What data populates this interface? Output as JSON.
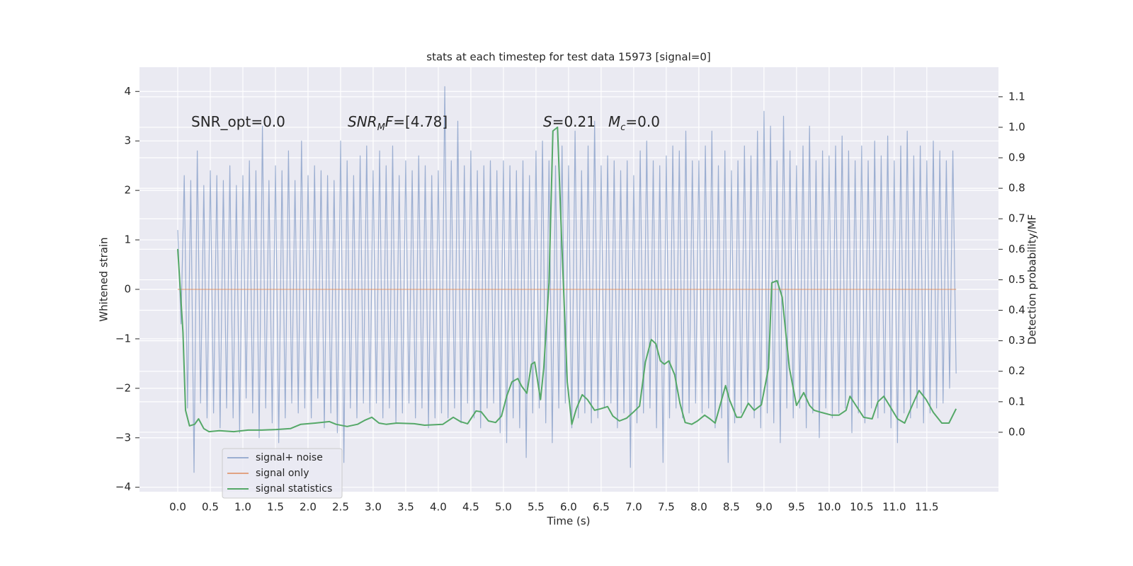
{
  "chart_data": {
    "type": "line",
    "title": "stats at each timestep for test data 15973 [signal=0]",
    "xlabel": "Time (s)",
    "ylabel": "Whitened strain",
    "y2label": "Detection probability/MF",
    "xlim": [
      -0.587,
      12.6
    ],
    "ylim": [
      -4.09,
      4.49
    ],
    "y2lim": [
      -0.195,
      1.197
    ],
    "xticks": [
      {
        "value": 0,
        "label": "0.0"
      },
      0.5,
      {
        "value": 1,
        "label": "1.0"
      },
      1.5,
      {
        "value": 2,
        "label": "2.0"
      },
      2.5,
      {
        "value": 3,
        "label": "3.0"
      },
      3.5,
      {
        "value": 4,
        "label": "4.0"
      },
      4.5,
      {
        "value": 5,
        "label": "5.0"
      },
      5.5,
      {
        "value": 6,
        "label": "6.0"
      },
      6.5,
      {
        "value": 7,
        "label": "7.0"
      },
      7.5,
      {
        "value": 8,
        "label": "8.0"
      },
      8.5,
      {
        "value": 9,
        "label": "9.0"
      },
      9.5,
      {
        "value": 10,
        "label": "10.0"
      },
      10.5,
      {
        "value": 11,
        "label": "11.0"
      },
      11.5
    ],
    "yticks": [
      {
        "value": -4,
        "label": "−4"
      },
      {
        "value": -3,
        "label": "−3"
      },
      {
        "value": -2,
        "label": "−2"
      },
      {
        "value": -1,
        "label": "−1"
      },
      0,
      1,
      2,
      3,
      4
    ],
    "y2ticks": [
      {
        "value": 0,
        "label": "0.0"
      },
      0.1,
      0.2,
      0.3,
      0.4,
      0.5,
      0.6,
      0.7,
      0.8,
      0.9,
      {
        "value": 1,
        "label": "1.0"
      },
      1.1
    ],
    "grid": true,
    "background": "#eaeaf2",
    "legend": "lower left",
    "annotations": [
      [
        {
          "text": "SNR_opt=0.0"
        }
      ],
      [
        {
          "text": "SNR",
          "italic": true
        },
        {
          "text": "M",
          "italic": true,
          "sub": true
        },
        {
          "text": "F",
          "italic": true
        },
        {
          "text": "=[4.78]"
        }
      ],
      [
        {
          "text": "S",
          "italic": true
        },
        {
          "text": "=0.21"
        }
      ],
      [
        {
          "text": "M",
          "italic": true
        },
        {
          "text": "c",
          "italic": true,
          "sub": true
        },
        {
          "text": "=0.0"
        }
      ]
    ],
    "series": [
      {
        "name": "signal+ noise",
        "color": "#4c72b0",
        "alpha": 0.5,
        "x": [
          0,
          0.05,
          0.1,
          0.15,
          0.2,
          0.25,
          0.3,
          0.35,
          0.4,
          0.45,
          0.5,
          0.55,
          0.6,
          0.65,
          0.7,
          0.75,
          0.8,
          0.85,
          0.9,
          0.95,
          1,
          1.05,
          1.1,
          1.15,
          1.2,
          1.25,
          1.3,
          1.35,
          1.4,
          1.45,
          1.5,
          1.55,
          1.6,
          1.65,
          1.7,
          1.75,
          1.8,
          1.85,
          1.9,
          1.95,
          2,
          2.05,
          2.1,
          2.15,
          2.2,
          2.25,
          2.3,
          2.35,
          2.4,
          2.45,
          2.5,
          2.55,
          2.6,
          2.65,
          2.7,
          2.75,
          2.8,
          2.85,
          2.9,
          2.95,
          3,
          3.05,
          3.1,
          3.15,
          3.2,
          3.25,
          3.3,
          3.35,
          3.4,
          3.45,
          3.5,
          3.55,
          3.6,
          3.65,
          3.7,
          3.75,
          3.8,
          3.85,
          3.9,
          3.95,
          4,
          4.05,
          4.1,
          4.15,
          4.2,
          4.25,
          4.3,
          4.35,
          4.4,
          4.45,
          4.5,
          4.55,
          4.6,
          4.65,
          4.7,
          4.75,
          4.8,
          4.85,
          4.9,
          4.95,
          5,
          5.05,
          5.1,
          5.15,
          5.2,
          5.25,
          5.3,
          5.35,
          5.4,
          5.45,
          5.5,
          5.55,
          5.6,
          5.65,
          5.7,
          5.75,
          5.8,
          5.85,
          5.9,
          5.95,
          6,
          6.05,
          6.1,
          6.15,
          6.2,
          6.25,
          6.3,
          6.35,
          6.4,
          6.45,
          6.5,
          6.55,
          6.6,
          6.65,
          6.7,
          6.75,
          6.8,
          6.85,
          6.9,
          6.95,
          7,
          7.05,
          7.1,
          7.15,
          7.2,
          7.25,
          7.3,
          7.35,
          7.4,
          7.45,
          7.5,
          7.55,
          7.6,
          7.65,
          7.7,
          7.75,
          7.8,
          7.85,
          7.9,
          7.95,
          8,
          8.05,
          8.1,
          8.15,
          8.2,
          8.25,
          8.3,
          8.35,
          8.4,
          8.45,
          8.5,
          8.55,
          8.6,
          8.65,
          8.7,
          8.75,
          8.8,
          8.85,
          8.9,
          8.95,
          9,
          9.05,
          9.1,
          9.15,
          9.2,
          9.25,
          9.3,
          9.35,
          9.4,
          9.45,
          9.5,
          9.55,
          9.6,
          9.65,
          9.7,
          9.75,
          9.8,
          9.85,
          9.9,
          9.95,
          10,
          10.05,
          10.1,
          10.15,
          10.2,
          10.25,
          10.3,
          10.35,
          10.4,
          10.45,
          10.5,
          10.55,
          10.6,
          10.65,
          10.7,
          10.75,
          10.8,
          10.85,
          10.9,
          10.95,
          11,
          11.05,
          11.1,
          11.15,
          11.2,
          11.25,
          11.3,
          11.35,
          11.4,
          11.45,
          11.5,
          11.55,
          11.6,
          11.65,
          11.7,
          11.75,
          11.8,
          11.85,
          11.9,
          11.95
        ],
        "values": [
          1.2,
          -0.7,
          2.3,
          -2.4,
          2.2,
          -3.7,
          2.8,
          -2.3,
          2.1,
          -2.6,
          2.4,
          -2.5,
          2.3,
          -2.8,
          2.2,
          -2.4,
          2.5,
          -2.6,
          2.1,
          -2.9,
          2.3,
          -2.2,
          2.6,
          -2.5,
          2.4,
          -3.0,
          3.3,
          -2.4,
          2.2,
          -2.7,
          2.5,
          -3.1,
          2.4,
          -2.6,
          2.8,
          -2.3,
          2.2,
          -2.5,
          3.0,
          -2.4,
          2.3,
          -2.6,
          2.5,
          -2.2,
          2.4,
          -2.8,
          2.3,
          -2.5,
          2.2,
          -2.9,
          3.0,
          -3.5,
          2.6,
          -2.4,
          2.3,
          -2.6,
          2.7,
          -2.3,
          2.9,
          -2.5,
          2.4,
          -2.3,
          2.8,
          -2.6,
          2.5,
          -2.4,
          2.9,
          -2.7,
          2.3,
          -2.5,
          2.6,
          -2.3,
          2.4,
          -2.6,
          2.7,
          -2.4,
          2.5,
          -2.8,
          2.3,
          -2.6,
          2.4,
          -2.5,
          4.1,
          -2.6,
          2.6,
          -2.4,
          3.4,
          -2.7,
          2.5,
          -2.3,
          2.8,
          -2.6,
          2.4,
          -2.8,
          2.5,
          -2.4,
          2.6,
          -2.3,
          2.4,
          -2.9,
          2.6,
          -3.1,
          2.5,
          -2.6,
          2.4,
          -2.8,
          2.6,
          -3.4,
          2.3,
          -2.5,
          2.8,
          -2.4,
          3.0,
          -2.7,
          2.6,
          -3.1,
          2.5,
          -2.4,
          2.9,
          -2.3,
          2.5,
          -2.8,
          3.2,
          -2.6,
          2.4,
          -2.5,
          2.9,
          -2.7,
          3.4,
          -2.6,
          2.5,
          -2.4,
          2.7,
          -2.3,
          2.6,
          -2.8,
          2.4,
          -2.5,
          2.6,
          -3.6,
          2.3,
          -2.7,
          2.8,
          -2.5,
          3.0,
          -2.4,
          2.6,
          -2.8,
          2.5,
          -3.5,
          2.7,
          -2.6,
          2.9,
          -2.4,
          2.8,
          -2.6,
          3.2,
          -2.5,
          2.6,
          -2.3,
          2.6,
          -2.5,
          2.9,
          -2.4,
          3.2,
          -2.8,
          2.5,
          -2.6,
          2.8,
          -3.5,
          2.4,
          -2.7,
          2.6,
          -2.5,
          2.9,
          -2.3,
          2.7,
          -2.6,
          3.2,
          -2.8,
          3.6,
          -2.5,
          3.3,
          -2.7,
          2.6,
          -3.1,
          3.5,
          -2.4,
          2.8,
          -2.6,
          2.5,
          -2.4,
          2.9,
          -2.8,
          3.3,
          -2.5,
          2.6,
          -3.0,
          2.8,
          -2.4,
          2.7,
          -2.6,
          2.9,
          -2.5,
          3.1,
          -2.4,
          2.8,
          -2.9,
          2.6,
          -2.5,
          2.9,
          -2.7,
          2.6,
          -2.4,
          3.0,
          -2.6,
          2.7,
          -2.5,
          3.1,
          -2.8,
          2.6,
          -3.1,
          2.9,
          -2.5,
          3.2,
          -2.6,
          2.7,
          -2.4,
          2.9,
          -2.7,
          2.6,
          -2.5,
          3.0,
          -2.4,
          2.8,
          -2.3,
          2.6,
          -2.0,
          2.8,
          -1.7
        ]
      },
      {
        "name": "signal only",
        "color": "#dd8452",
        "alpha": 0.7,
        "x": [
          0,
          11.95
        ],
        "values": [
          0,
          0
        ]
      },
      {
        "name": "signal statistics",
        "color": "#55a868",
        "alpha": 1,
        "axis": "y2",
        "x": [
          0,
          0.08,
          0.12,
          0.18,
          0.26,
          0.32,
          0.4,
          0.48,
          0.64,
          0.86,
          1.08,
          1.29,
          1.51,
          1.73,
          1.89,
          2.11,
          2.33,
          2.43,
          2.6,
          2.76,
          2.87,
          2.98,
          3.09,
          3.2,
          3.36,
          3.63,
          3.79,
          4.07,
          4.23,
          4.34,
          4.45,
          4.58,
          4.66,
          4.77,
          4.88,
          4.97,
          5.05,
          5.13,
          5.22,
          5.28,
          5.36,
          5.43,
          5.48,
          5.57,
          5.62,
          5.7,
          5.76,
          5.83,
          5.89,
          5.98,
          6.05,
          6.12,
          6.21,
          6.29,
          6.4,
          6.49,
          6.6,
          6.68,
          6.78,
          6.89,
          7.0,
          7.09,
          7.18,
          7.27,
          7.34,
          7.41,
          7.47,
          7.54,
          7.63,
          7.71,
          7.79,
          7.89,
          7.98,
          8.09,
          8.17,
          8.25,
          8.41,
          8.47,
          8.58,
          8.65,
          8.76,
          8.85,
          8.96,
          9.07,
          9.12,
          9.2,
          9.28,
          9.39,
          9.5,
          9.61,
          9.7,
          9.77,
          9.88,
          10.04,
          10.15,
          10.26,
          10.32,
          10.39,
          10.53,
          10.66,
          10.75,
          10.84,
          10.92,
          11.05,
          11.16,
          11.29,
          11.38,
          11.49,
          11.6,
          11.73,
          11.84,
          11.95
        ],
        "values": [
          0.601,
          0.327,
          0.072,
          0.021,
          0.026,
          0.044,
          0.012,
          0.002,
          0.005,
          0.002,
          0.007,
          0.007,
          0.009,
          0.012,
          0.026,
          0.03,
          0.035,
          0.026,
          0.019,
          0.026,
          0.039,
          0.049,
          0.03,
          0.026,
          0.03,
          0.028,
          0.023,
          0.026,
          0.049,
          0.035,
          0.028,
          0.07,
          0.067,
          0.037,
          0.032,
          0.053,
          0.118,
          0.165,
          0.176,
          0.151,
          0.128,
          0.223,
          0.23,
          0.107,
          0.211,
          0.49,
          0.988,
          1.0,
          0.652,
          0.165,
          0.026,
          0.077,
          0.123,
          0.107,
          0.072,
          0.077,
          0.084,
          0.053,
          0.037,
          0.046,
          0.067,
          0.086,
          0.23,
          0.304,
          0.29,
          0.234,
          0.223,
          0.234,
          0.188,
          0.095,
          0.032,
          0.026,
          0.037,
          0.056,
          0.044,
          0.03,
          0.153,
          0.107,
          0.049,
          0.049,
          0.095,
          0.072,
          0.09,
          0.211,
          0.49,
          0.497,
          0.443,
          0.211,
          0.088,
          0.13,
          0.088,
          0.072,
          0.065,
          0.056,
          0.056,
          0.072,
          0.118,
          0.095,
          0.049,
          0.044,
          0.1,
          0.118,
          0.09,
          0.044,
          0.03,
          0.095,
          0.137,
          0.107,
          0.065,
          0.03,
          0.03,
          0.077
        ]
      }
    ]
  }
}
